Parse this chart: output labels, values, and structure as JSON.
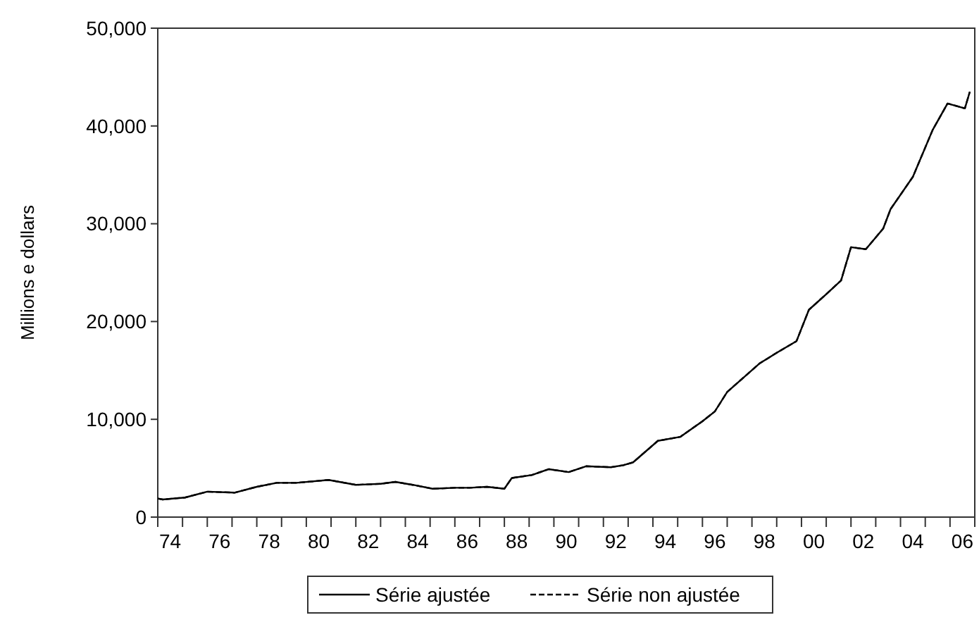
{
  "chart_data": {
    "type": "line",
    "ylabel": "Millions e dollars",
    "x": [
      1973.5,
      1973.7,
      1974.6,
      1975.5,
      1976.6,
      1977.5,
      1978.3,
      1979.1,
      1980.4,
      1981.5,
      1982.5,
      1983.1,
      1983.8,
      1984.6,
      1985.5,
      1986.1,
      1986.8,
      1987.5,
      1987.8,
      1988.6,
      1989.3,
      1990.1,
      1990.8,
      1991.8,
      1992.3,
      1992.7,
      1993.7,
      1994.6,
      1995.5,
      1996.0,
      1996.5,
      1997.8,
      1998.5,
      1999.3,
      1999.8,
      2000.5,
      2001.1,
      2001.5,
      2002.1,
      2002.8,
      2003.1,
      2004.0,
      2004.8,
      2005.4,
      2006.1,
      2006.3
    ],
    "series": [
      {
        "name": "Série ajustée",
        "color": "#000000",
        "line_style": "solid",
        "values": [
          1900,
          1800,
          2000,
          2600,
          2500,
          3100,
          3500,
          3500,
          3800,
          3300,
          3400,
          3600,
          3300,
          2900,
          3000,
          3000,
          3100,
          2900,
          4000,
          4300,
          4900,
          4600,
          5200,
          5100,
          5300,
          5600,
          7800,
          8200,
          9800,
          10800,
          12800,
          15700,
          16800,
          18000,
          21200,
          22800,
          24200,
          27600,
          27400,
          29500,
          31500,
          34800,
          39600,
          42300,
          41800,
          43500
        ]
      },
      {
        "name": "Série non ajustée",
        "color": "#000000",
        "line_style": "dashed",
        "values": [
          1900,
          1800,
          2000,
          2600,
          2500,
          3100,
          3500,
          3500,
          3800,
          3300,
          3400,
          3600,
          3300,
          2900,
          3000,
          3000,
          3100,
          2900,
          4000,
          4300,
          4900,
          4600,
          5200,
          5100,
          5300,
          5600,
          7800,
          8200,
          9800,
          10800,
          12800,
          15700,
          16800,
          18000,
          21200,
          22800,
          24200,
          27600,
          27400,
          29500,
          31500,
          34800,
          39600,
          42300,
          41800,
          43500
        ]
      }
    ],
    "xlim": [
      1973.5,
      2006.5
    ],
    "xticks": [
      {
        "value": 1973.5,
        "label": null
      },
      {
        "value": 1974,
        "label": "74"
      },
      {
        "value": 1974.5,
        "label": null
      },
      {
        "value": 1975.5,
        "label": null
      },
      {
        "value": 1976,
        "label": "76"
      },
      {
        "value": 1976.5,
        "label": null
      },
      {
        "value": 1977.5,
        "label": null
      },
      {
        "value": 1978,
        "label": "78"
      },
      {
        "value": 1978.5,
        "label": null
      },
      {
        "value": 1979.5,
        "label": null
      },
      {
        "value": 1980,
        "label": "80"
      },
      {
        "value": 1980.5,
        "label": null
      },
      {
        "value": 1981.5,
        "label": null
      },
      {
        "value": 1982,
        "label": "82"
      },
      {
        "value": 1982.5,
        "label": null
      },
      {
        "value": 1983.5,
        "label": null
      },
      {
        "value": 1984,
        "label": "84"
      },
      {
        "value": 1984.5,
        "label": null
      },
      {
        "value": 1985.5,
        "label": null
      },
      {
        "value": 1986,
        "label": "86"
      },
      {
        "value": 1986.5,
        "label": null
      },
      {
        "value": 1987.5,
        "label": null
      },
      {
        "value": 1988,
        "label": "88"
      },
      {
        "value": 1988.5,
        "label": null
      },
      {
        "value": 1989.5,
        "label": null
      },
      {
        "value": 1990,
        "label": "90"
      },
      {
        "value": 1990.5,
        "label": null
      },
      {
        "value": 1991.5,
        "label": null
      },
      {
        "value": 1992,
        "label": "92"
      },
      {
        "value": 1992.5,
        "label": null
      },
      {
        "value": 1993.5,
        "label": null
      },
      {
        "value": 1994,
        "label": "94"
      },
      {
        "value": 1994.5,
        "label": null
      },
      {
        "value": 1995.5,
        "label": null
      },
      {
        "value": 1996,
        "label": "96"
      },
      {
        "value": 1996.5,
        "label": null
      },
      {
        "value": 1997.5,
        "label": null
      },
      {
        "value": 1998,
        "label": "98"
      },
      {
        "value": 1998.5,
        "label": null
      },
      {
        "value": 1999.5,
        "label": null
      },
      {
        "value": 2000,
        "label": "00"
      },
      {
        "value": 2000.5,
        "label": null
      },
      {
        "value": 2001.5,
        "label": null
      },
      {
        "value": 2002,
        "label": "02"
      },
      {
        "value": 2002.5,
        "label": null
      },
      {
        "value": 2003.5,
        "label": null
      },
      {
        "value": 2004,
        "label": "04"
      },
      {
        "value": 2004.5,
        "label": null
      },
      {
        "value": 2005.5,
        "label": null
      },
      {
        "value": 2006,
        "label": "06"
      },
      {
        "value": 2006.5,
        "label": null
      }
    ],
    "ylim": [
      0,
      50000
    ],
    "yticks": [
      {
        "value": 0,
        "label": "0"
      },
      {
        "value": 10000,
        "label": "10,000"
      },
      {
        "value": 20000,
        "label": "20,000"
      },
      {
        "value": 30000,
        "label": "30,000"
      },
      {
        "value": 40000,
        "label": "40,000"
      },
      {
        "value": 50000,
        "label": "50,000"
      }
    ],
    "grid": false,
    "legend": "bottom",
    "marker": "none"
  }
}
